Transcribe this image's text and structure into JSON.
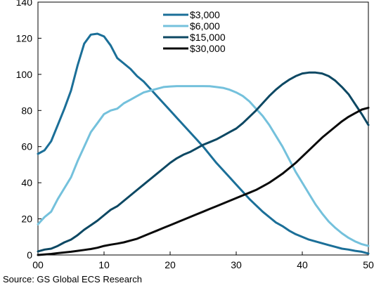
{
  "chart_data": {
    "type": "line",
    "title": "",
    "xlabel": "",
    "ylabel": "",
    "xlim": [
      0,
      50
    ],
    "ylim": [
      0,
      140
    ],
    "x_ticks": [
      0,
      10,
      20,
      30,
      40,
      50
    ],
    "x_tick_labels": [
      "00",
      "10",
      "20",
      "30",
      "40",
      "50"
    ],
    "y_ticks": [
      0,
      20,
      40,
      60,
      80,
      100,
      120,
      140
    ],
    "grid": false,
    "legend_position": "top-center",
    "source": "Source: GS Global ECS Research",
    "series": [
      {
        "name": "$3,000",
        "color": "#1b6f98",
        "points": [
          [
            0,
            56
          ],
          [
            1,
            58
          ],
          [
            2,
            63
          ],
          [
            3,
            72
          ],
          [
            4,
            81
          ],
          [
            5,
            91
          ],
          [
            6,
            105
          ],
          [
            7,
            117
          ],
          [
            8,
            122
          ],
          [
            9,
            122.5
          ],
          [
            10,
            121
          ],
          [
            11,
            116
          ],
          [
            12,
            109
          ],
          [
            13,
            106
          ],
          [
            14,
            103
          ],
          [
            15,
            99
          ],
          [
            16,
            96
          ],
          [
            17,
            92
          ],
          [
            18,
            88
          ],
          [
            19,
            84
          ],
          [
            20,
            80
          ],
          [
            21,
            76
          ],
          [
            22,
            72
          ],
          [
            23,
            68
          ],
          [
            24,
            64
          ],
          [
            25,
            60
          ],
          [
            26,
            55.5
          ],
          [
            27,
            51
          ],
          [
            28,
            47
          ],
          [
            29,
            43
          ],
          [
            30,
            39
          ],
          [
            31,
            35
          ],
          [
            32,
            31
          ],
          [
            33,
            27.5
          ],
          [
            34,
            24
          ],
          [
            35,
            21
          ],
          [
            36,
            18
          ],
          [
            37,
            16
          ],
          [
            38,
            13.5
          ],
          [
            39,
            11.5
          ],
          [
            40,
            10
          ],
          [
            41,
            8.5
          ],
          [
            42,
            7.5
          ],
          [
            43,
            6.5
          ],
          [
            44,
            5.5
          ],
          [
            45,
            4.5
          ],
          [
            46,
            3.5
          ],
          [
            47,
            3
          ],
          [
            48,
            2.3
          ],
          [
            49,
            1.8
          ],
          [
            50,
            0.8
          ]
        ]
      },
      {
        "name": "$6,000",
        "color": "#74c1dc",
        "points": [
          [
            0,
            17
          ],
          [
            1,
            21
          ],
          [
            2,
            24
          ],
          [
            3,
            31
          ],
          [
            4,
            37
          ],
          [
            5,
            43
          ],
          [
            6,
            52
          ],
          [
            7,
            60
          ],
          [
            8,
            68
          ],
          [
            9,
            73
          ],
          [
            10,
            78
          ],
          [
            11,
            80
          ],
          [
            12,
            81
          ],
          [
            13,
            84
          ],
          [
            14,
            86
          ],
          [
            15,
            88
          ],
          [
            16,
            90
          ],
          [
            17,
            91
          ],
          [
            18,
            92
          ],
          [
            19,
            93
          ],
          [
            20,
            93.3
          ],
          [
            21,
            93.5
          ],
          [
            22,
            93.5
          ],
          [
            23,
            93.5
          ],
          [
            24,
            93.5
          ],
          [
            25,
            93.5
          ],
          [
            26,
            93.4
          ],
          [
            27,
            93
          ],
          [
            28,
            92.5
          ],
          [
            29,
            91.5
          ],
          [
            30,
            90
          ],
          [
            31,
            88
          ],
          [
            32,
            85
          ],
          [
            33,
            81
          ],
          [
            34,
            77
          ],
          [
            35,
            72
          ],
          [
            36,
            66
          ],
          [
            37,
            60
          ],
          [
            38,
            53
          ],
          [
            39,
            46
          ],
          [
            40,
            40
          ],
          [
            41,
            34
          ],
          [
            42,
            28
          ],
          [
            43,
            23
          ],
          [
            44,
            18.5
          ],
          [
            45,
            15
          ],
          [
            46,
            12
          ],
          [
            47,
            9.5
          ],
          [
            48,
            7.5
          ],
          [
            49,
            6
          ],
          [
            50,
            5
          ]
        ]
      },
      {
        "name": "$15,000",
        "color": "#0d4863",
        "points": [
          [
            0,
            2
          ],
          [
            1,
            3
          ],
          [
            2,
            3.5
          ],
          [
            3,
            5
          ],
          [
            4,
            7
          ],
          [
            5,
            8.5
          ],
          [
            6,
            11
          ],
          [
            7,
            14
          ],
          [
            8,
            16.5
          ],
          [
            9,
            19
          ],
          [
            10,
            22
          ],
          [
            11,
            25
          ],
          [
            12,
            27
          ],
          [
            13,
            30
          ],
          [
            14,
            33
          ],
          [
            15,
            36
          ],
          [
            16,
            39
          ],
          [
            17,
            42
          ],
          [
            18,
            45
          ],
          [
            19,
            48
          ],
          [
            20,
            51
          ],
          [
            21,
            53.5
          ],
          [
            22,
            55.5
          ],
          [
            23,
            57
          ],
          [
            24,
            59
          ],
          [
            25,
            61
          ],
          [
            26,
            62.5
          ],
          [
            27,
            64
          ],
          [
            28,
            66
          ],
          [
            29,
            68
          ],
          [
            30,
            70
          ],
          [
            31,
            73
          ],
          [
            32,
            76.5
          ],
          [
            33,
            80
          ],
          [
            34,
            84
          ],
          [
            35,
            88
          ],
          [
            36,
            91.5
          ],
          [
            37,
            94.5
          ],
          [
            38,
            97
          ],
          [
            39,
            99
          ],
          [
            40,
            100.5
          ],
          [
            41,
            101
          ],
          [
            42,
            101
          ],
          [
            43,
            100.5
          ],
          [
            44,
            99
          ],
          [
            45,
            96.5
          ],
          [
            46,
            93
          ],
          [
            47,
            89
          ],
          [
            48,
            83.5
          ],
          [
            49,
            78
          ],
          [
            50,
            72
          ]
        ]
      },
      {
        "name": "$30,000",
        "color": "#0a0a0a",
        "points": [
          [
            0,
            0
          ],
          [
            1,
            0.3
          ],
          [
            2,
            0.6
          ],
          [
            3,
            1
          ],
          [
            4,
            1.4
          ],
          [
            5,
            1.8
          ],
          [
            6,
            2.3
          ],
          [
            7,
            2.8
          ],
          [
            8,
            3.3
          ],
          [
            9,
            4
          ],
          [
            10,
            5
          ],
          [
            11,
            5.7
          ],
          [
            12,
            6.3
          ],
          [
            13,
            7
          ],
          [
            14,
            8
          ],
          [
            15,
            9
          ],
          [
            16,
            10.5
          ],
          [
            17,
            12
          ],
          [
            18,
            13.5
          ],
          [
            19,
            15
          ],
          [
            20,
            16.5
          ],
          [
            21,
            18
          ],
          [
            22,
            19.5
          ],
          [
            23,
            21
          ],
          [
            24,
            22.5
          ],
          [
            25,
            24
          ],
          [
            26,
            25.5
          ],
          [
            27,
            27
          ],
          [
            28,
            28.5
          ],
          [
            29,
            30
          ],
          [
            30,
            31.5
          ],
          [
            31,
            33
          ],
          [
            32,
            34.5
          ],
          [
            33,
            36
          ],
          [
            34,
            38
          ],
          [
            35,
            40
          ],
          [
            36,
            42.5
          ],
          [
            37,
            45
          ],
          [
            38,
            48
          ],
          [
            39,
            51
          ],
          [
            40,
            54.5
          ],
          [
            41,
            58
          ],
          [
            42,
            61.5
          ],
          [
            43,
            65
          ],
          [
            44,
            68
          ],
          [
            45,
            71
          ],
          [
            46,
            74
          ],
          [
            47,
            76.5
          ],
          [
            48,
            78.5
          ],
          [
            49,
            80.5
          ],
          [
            50,
            81.5
          ]
        ]
      }
    ]
  }
}
